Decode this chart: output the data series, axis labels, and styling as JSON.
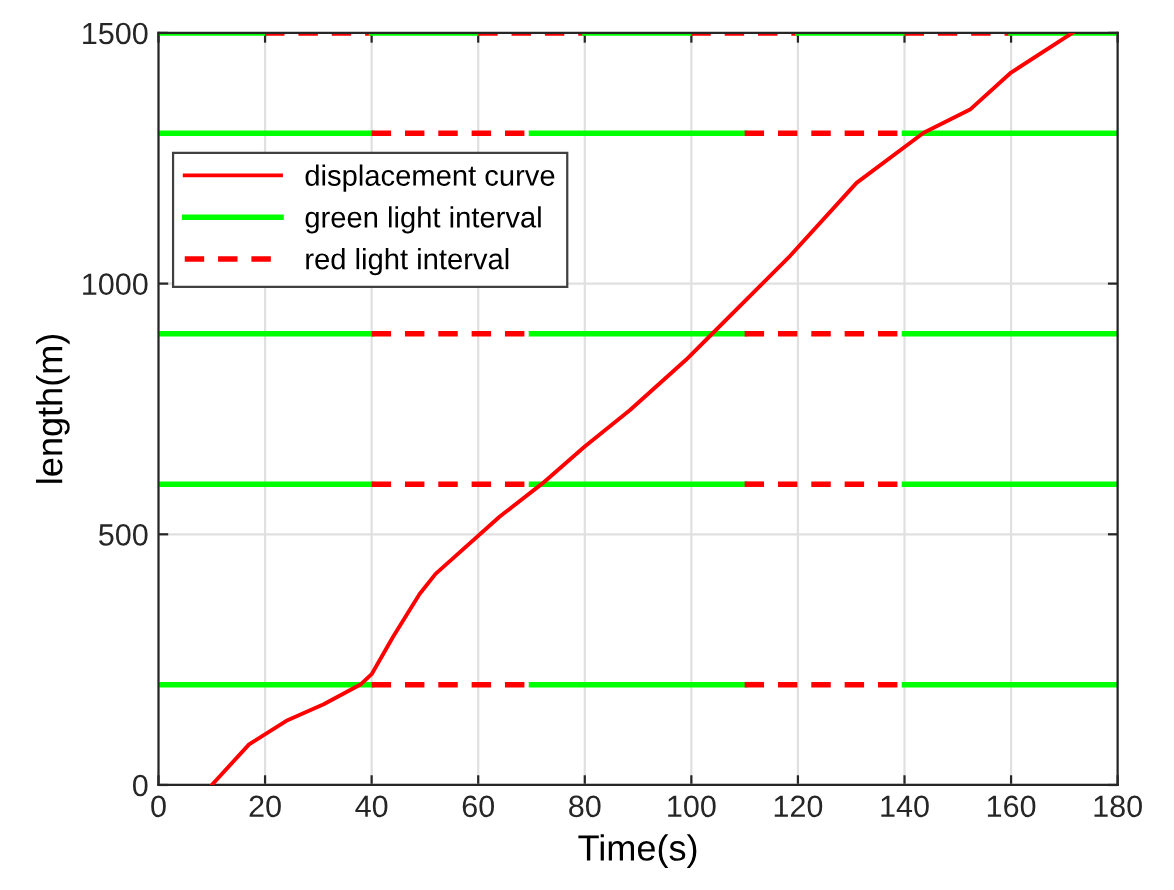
{
  "chart_data": {
    "type": "line",
    "xlabel": "Time(s)",
    "ylabel": "length(m)",
    "xlim": [
      0,
      180
    ],
    "xticks": [
      0,
      20,
      40,
      60,
      80,
      100,
      120,
      140,
      160,
      180
    ],
    "ylim": [
      0,
      1500
    ],
    "yticks": [
      0,
      500,
      1000,
      1500
    ],
    "grid": true,
    "legend": "top left",
    "series": [
      {
        "name": "displacement curve",
        "color": "#ff0000",
        "line_style": "solid",
        "x": [
          10,
          17,
          24,
          31,
          38,
          40,
          44,
          49,
          52,
          64,
          72,
          80,
          88.5,
          99,
          104,
          118.5,
          131,
          143.6,
          152.4,
          160,
          171.5
        ],
        "values": [
          0,
          81,
          128,
          161,
          201,
          221,
          295,
          381,
          421,
          535,
          601,
          675,
          748,
          848,
          901,
          1055,
          1201,
          1301,
          1348,
          1421,
          1500
        ]
      },
      {
        "name": "green light interval",
        "color": "#00ff00",
        "line_style": "solid",
        "x": [
          0,
          40
        ],
        "values": [
          200,
          200
        ]
      },
      {
        "name": "red light interval",
        "color": "#ff0000",
        "line_style": "dashed",
        "x": [
          40,
          70
        ],
        "values": [
          200,
          200
        ]
      },
      {
        "color": "#00ff00",
        "line_style": "solid",
        "x": [
          70,
          110
        ],
        "values": [
          200,
          200
        ]
      },
      {
        "color": "#ff0000",
        "line_style": "dashed",
        "x": [
          110,
          140
        ],
        "values": [
          200,
          200
        ]
      },
      {
        "color": "#00ff00",
        "line_style": "solid",
        "x": [
          140,
          180
        ],
        "values": [
          200,
          200
        ]
      },
      {
        "color": "#00ff00",
        "line_style": "solid",
        "x": [
          0,
          40
        ],
        "values": [
          600,
          600
        ]
      },
      {
        "color": "#ff0000",
        "line_style": "dashed",
        "x": [
          40,
          70
        ],
        "values": [
          600,
          600
        ]
      },
      {
        "color": "#00ff00",
        "line_style": "solid",
        "x": [
          70,
          110
        ],
        "values": [
          600,
          600
        ]
      },
      {
        "color": "#ff0000",
        "line_style": "dashed",
        "x": [
          110,
          140
        ],
        "values": [
          600,
          600
        ]
      },
      {
        "color": "#00ff00",
        "line_style": "solid",
        "x": [
          140,
          180
        ],
        "values": [
          600,
          600
        ]
      },
      {
        "color": "#00ff00",
        "line_style": "solid",
        "x": [
          0,
          40
        ],
        "values": [
          900,
          900
        ]
      },
      {
        "color": "#ff0000",
        "line_style": "dashed",
        "x": [
          40,
          70
        ],
        "values": [
          900,
          900
        ]
      },
      {
        "color": "#00ff00",
        "line_style": "solid",
        "x": [
          70,
          110
        ],
        "values": [
          900,
          900
        ]
      },
      {
        "color": "#ff0000",
        "line_style": "dashed",
        "x": [
          110,
          140
        ],
        "values": [
          900,
          900
        ]
      },
      {
        "color": "#00ff00",
        "line_style": "solid",
        "x": [
          140,
          180
        ],
        "values": [
          900,
          900
        ]
      },
      {
        "color": "#00ff00",
        "line_style": "solid",
        "x": [
          0,
          40
        ],
        "values": [
          1300,
          1300
        ]
      },
      {
        "color": "#ff0000",
        "line_style": "dashed",
        "x": [
          40,
          70
        ],
        "values": [
          1300,
          1300
        ]
      },
      {
        "color": "#00ff00",
        "line_style": "solid",
        "x": [
          70,
          110
        ],
        "values": [
          1300,
          1300
        ]
      },
      {
        "color": "#ff0000",
        "line_style": "dashed",
        "x": [
          110,
          140
        ],
        "values": [
          1300,
          1300
        ]
      },
      {
        "color": "#00ff00",
        "line_style": "solid",
        "x": [
          140,
          180
        ],
        "values": [
          1300,
          1300
        ]
      },
      {
        "color": "#00ff00",
        "line_style": "solid",
        "x": [
          0,
          20
        ],
        "values": [
          1500,
          1500
        ]
      },
      {
        "color": "#ff0000",
        "line_style": "dashed",
        "x": [
          20,
          40
        ],
        "values": [
          1500,
          1500
        ]
      },
      {
        "color": "#00ff00",
        "line_style": "solid",
        "x": [
          40,
          60
        ],
        "values": [
          1500,
          1500
        ]
      },
      {
        "color": "#ff0000",
        "line_style": "dashed",
        "x": [
          60,
          80
        ],
        "values": [
          1500,
          1500
        ]
      },
      {
        "color": "#00ff00",
        "line_style": "solid",
        "x": [
          80,
          100
        ],
        "values": [
          1500,
          1500
        ]
      },
      {
        "color": "#ff0000",
        "line_style": "dashed",
        "x": [
          100,
          120
        ],
        "values": [
          1500,
          1500
        ]
      },
      {
        "color": "#00ff00",
        "line_style": "solid",
        "x": [
          120,
          140
        ],
        "values": [
          1500,
          1500
        ]
      },
      {
        "color": "#ff0000",
        "line_style": "dashed",
        "x": [
          140,
          160
        ],
        "values": [
          1500,
          1500
        ]
      },
      {
        "color": "#00ff00",
        "line_style": "solid",
        "x": [
          160,
          180
        ],
        "values": [
          1500,
          1500
        ]
      }
    ]
  }
}
